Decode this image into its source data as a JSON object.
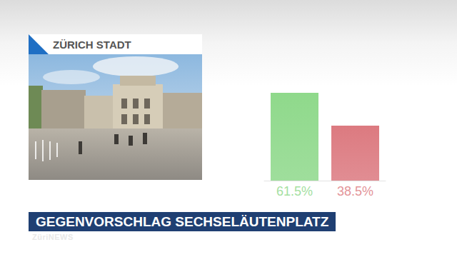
{
  "header": {
    "title": "ZÜRICH STADT"
  },
  "banner": {
    "text": "GEGENVORSCHLAG SECHSELÄUTENPLATZ"
  },
  "logo": {
    "text": "ZüriNEWS"
  },
  "chart_data": {
    "type": "bar",
    "categories": [
      null,
      null
    ],
    "values": [
      61.5,
      38.5
    ],
    "value_labels": [
      "61.5%",
      "38.5%"
    ],
    "colors": [
      "#8fd98b",
      "#dc7a80"
    ],
    "ylim": [
      0,
      61.5
    ],
    "data_labels": true,
    "tick_labels": false,
    "grid": false
  }
}
